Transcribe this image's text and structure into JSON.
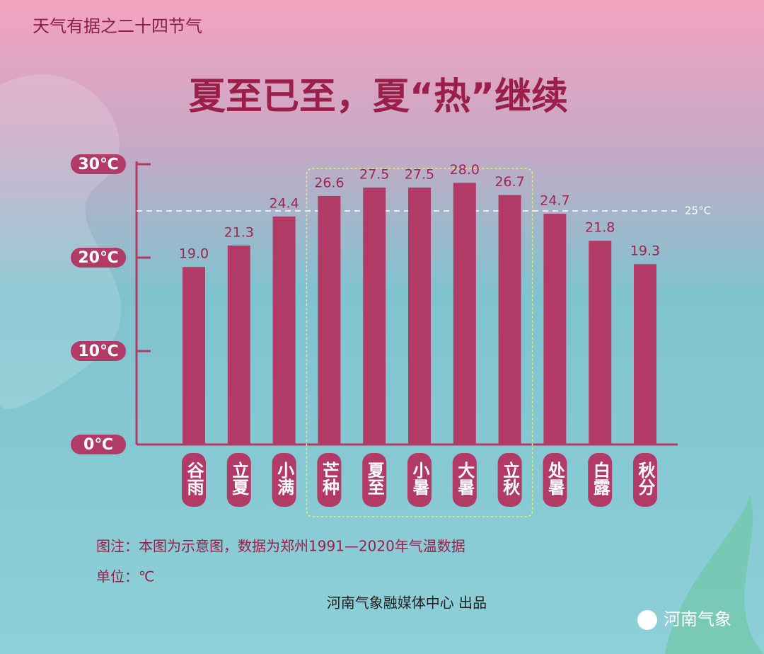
{
  "header": "天气有据之二十四节气",
  "chart_data": {
    "type": "bar",
    "title": "夏至已至，夏“热”继续",
    "categories": [
      "谷雨",
      "立夏",
      "小满",
      "芒种",
      "夏至",
      "小暑",
      "大暑",
      "立秋",
      "处暑",
      "白露",
      "秋分"
    ],
    "values": [
      19.0,
      21.3,
      24.4,
      26.6,
      27.5,
      27.5,
      28.0,
      26.7,
      24.7,
      21.8,
      19.3
    ],
    "value_labels": [
      "19.0",
      "21.3",
      "24.4",
      "26.6",
      "27.5",
      "27.5",
      "28.0",
      "26.7",
      "24.7",
      "21.8",
      "19.3"
    ],
    "color": "#b23a66",
    "ylim": [
      0,
      30
    ],
    "yticks": [
      {
        "value": 0,
        "label": "0℃"
      },
      {
        "value": 10,
        "label": "10℃"
      },
      {
        "value": 20,
        "label": "20℃"
      },
      {
        "value": 30,
        "label": "30℃"
      }
    ],
    "reference_line": {
      "value": 25,
      "label": "25°C"
    },
    "highlight": {
      "from": "芒种",
      "to": "立秋"
    }
  },
  "notes": [
    "图注：本图为示意图，数据为郑州1991—2020年气温数据",
    "单位：℃"
  ],
  "credit": "河南气象融媒体中心 出品",
  "logo": "河南气象"
}
